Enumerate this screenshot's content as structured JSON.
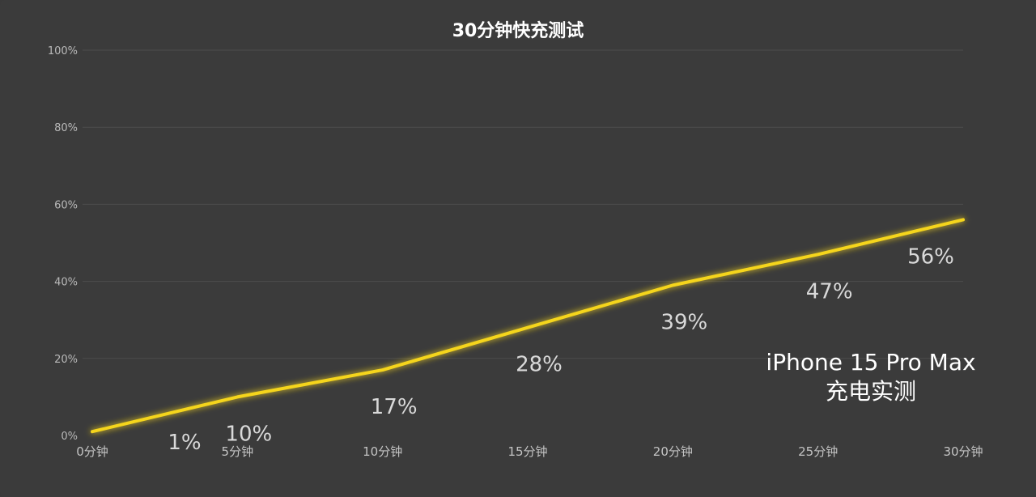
{
  "chart_data": {
    "type": "line",
    "title": "30分钟快充测试",
    "categories": [
      "0分钟",
      "5分钟",
      "10分钟",
      "15分钟",
      "20分钟",
      "25分钟",
      "30分钟"
    ],
    "series": [
      {
        "values": [
          1,
          10,
          17,
          28,
          39,
          47,
          56
        ],
        "data_labels": [
          "1%",
          "10%",
          "17%",
          "28%",
          "39%",
          "47%",
          "56%"
        ],
        "color": "#f5d51c"
      }
    ],
    "y_ticks": [
      "0%",
      "20%",
      "40%",
      "60%",
      "80%",
      "100%"
    ],
    "ylim": [
      0,
      100
    ],
    "grid": true,
    "xlabel": "",
    "ylabel": ""
  },
  "annotation": {
    "line1": "iPhone 15 Pro Max",
    "line2": "充电实测"
  },
  "colors": {
    "background": "#3b3b3b",
    "line": "#f5d51c",
    "grid": "#4d4d4d"
  }
}
